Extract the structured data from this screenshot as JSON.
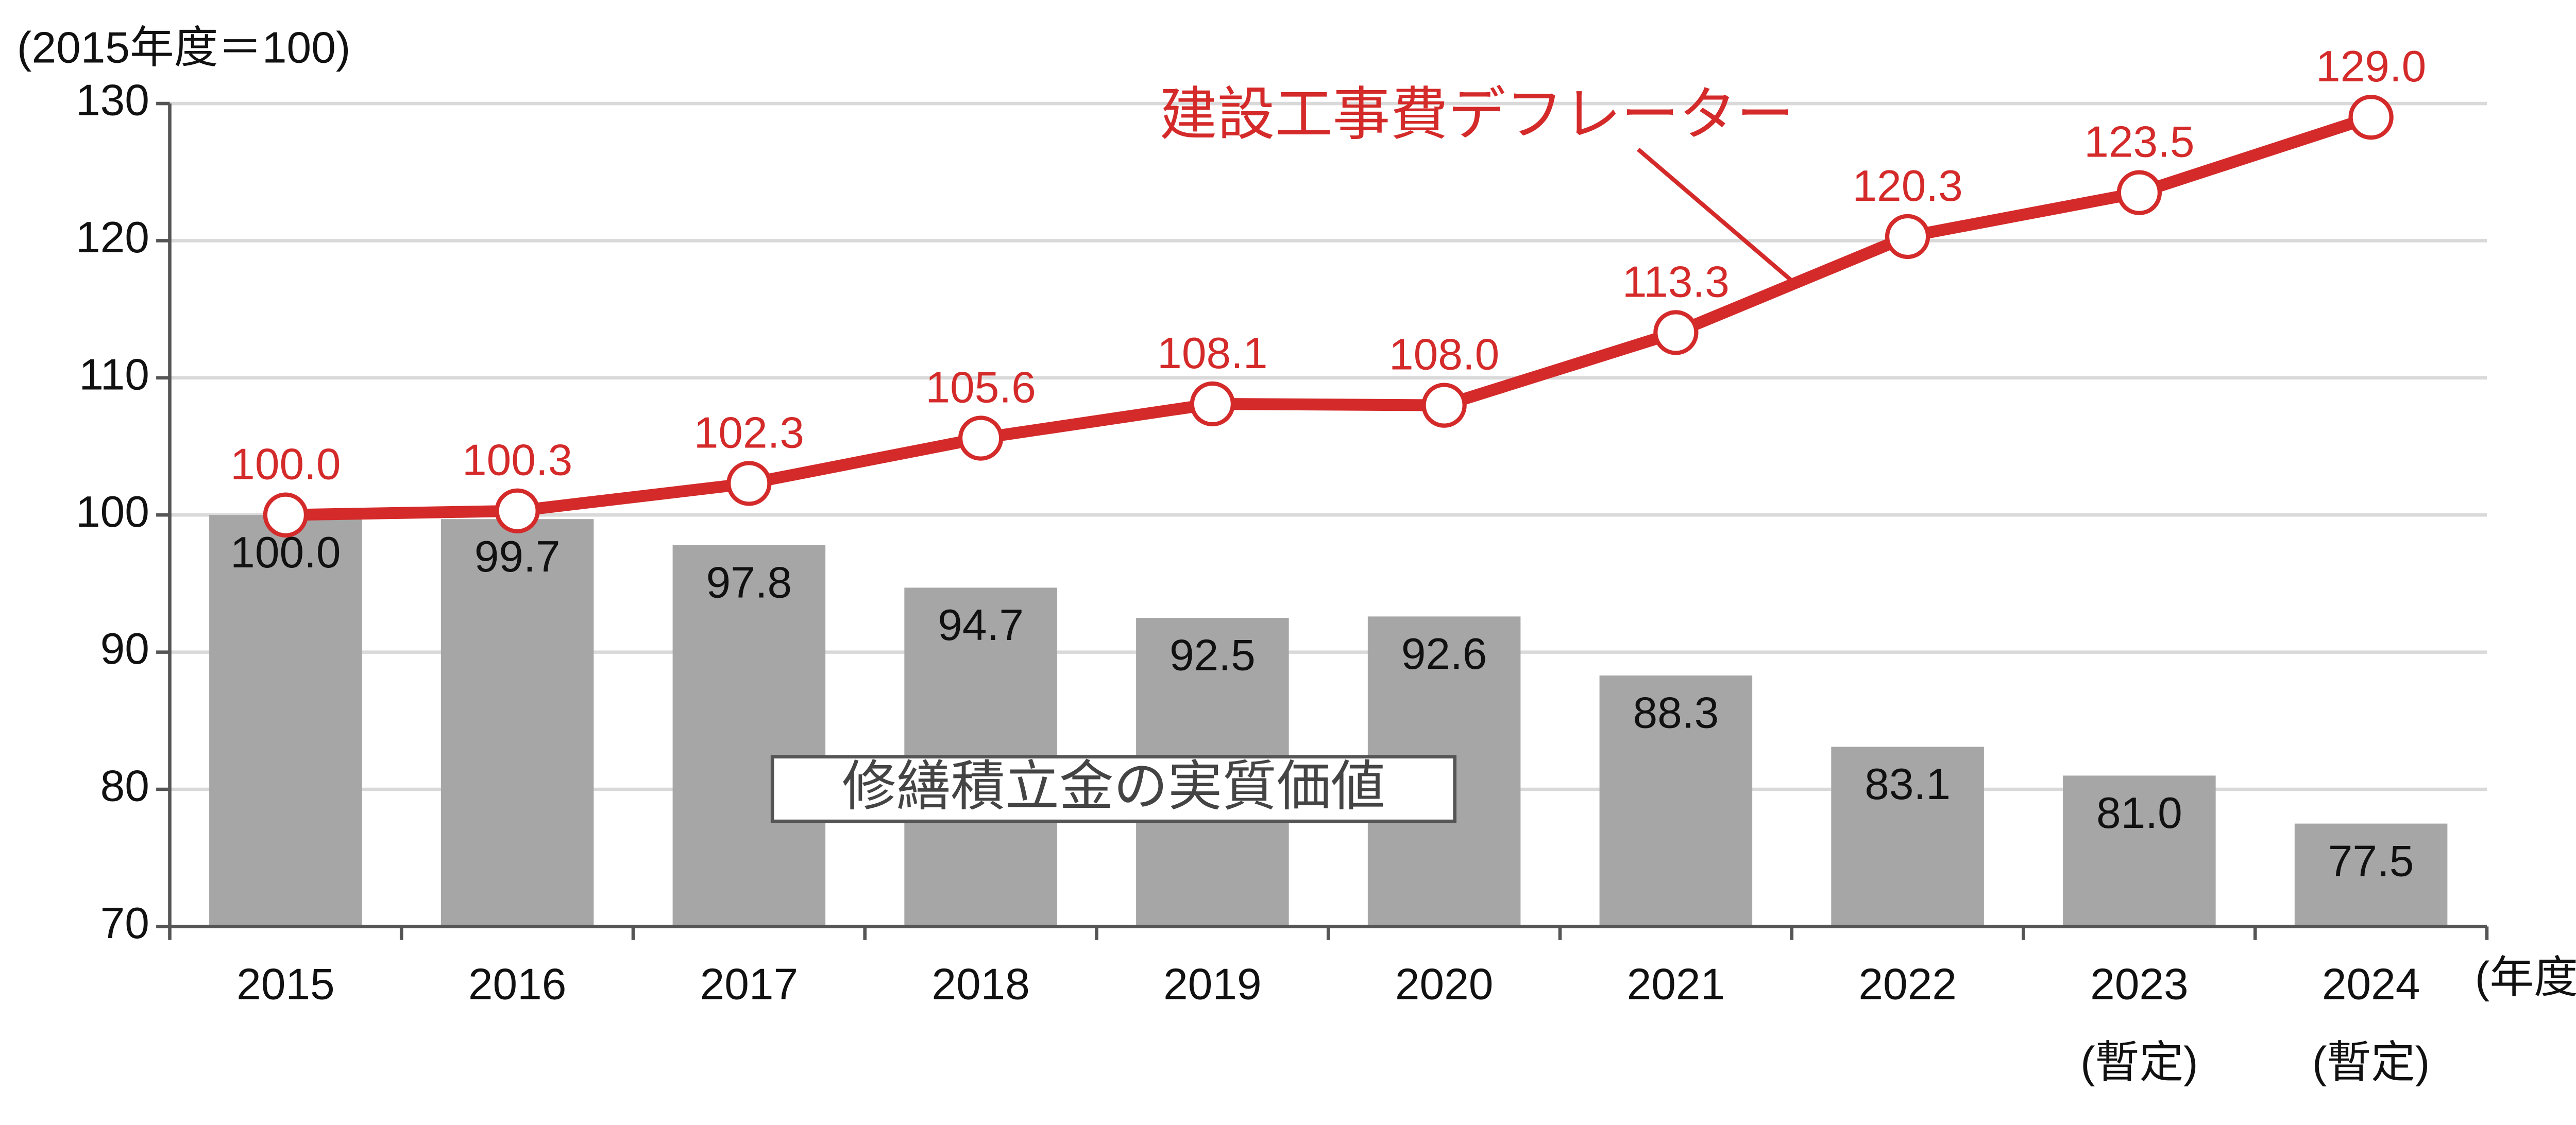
{
  "chart_data": {
    "type": "bar-line",
    "y_axis_label": "(2015年度＝100)",
    "x_axis_label": "(年度)",
    "categories": [
      "2015",
      "2016",
      "2017",
      "2018",
      "2019",
      "2020",
      "2021",
      "2022",
      "2023",
      "2024"
    ],
    "category_notes": [
      null,
      null,
      null,
      null,
      null,
      null,
      null,
      null,
      "(暫定)",
      "(暫定)"
    ],
    "ylim": [
      70,
      130
    ],
    "yticks": [
      70,
      80,
      90,
      100,
      110,
      120,
      130
    ],
    "grid": true,
    "series": [
      {
        "name": "修繕積立金の実質価値",
        "type": "bar",
        "color": "#a6a6a6",
        "values": [
          100,
          99.7,
          97.8,
          94.7,
          92.5,
          92.6,
          88.3,
          83.1,
          81,
          77.5
        ],
        "value_labels": [
          "100.0",
          "99.7",
          "97.8",
          "94.7",
          "92.5",
          "92.6",
          "88.3",
          "83.1",
          "81.0",
          "77.5"
        ]
      },
      {
        "name": "建設工事費デフレーター",
        "type": "line",
        "color": "#d42a2a",
        "values": [
          100,
          100.3,
          102.3,
          105.6,
          108.1,
          108,
          113.3,
          120.3,
          123.5,
          129
        ],
        "value_labels": [
          "100.0",
          "100.3",
          "102.3",
          "105.6",
          "108.1",
          "108.0",
          "113.3",
          "120.3",
          "123.5",
          "129.0"
        ]
      }
    ]
  }
}
